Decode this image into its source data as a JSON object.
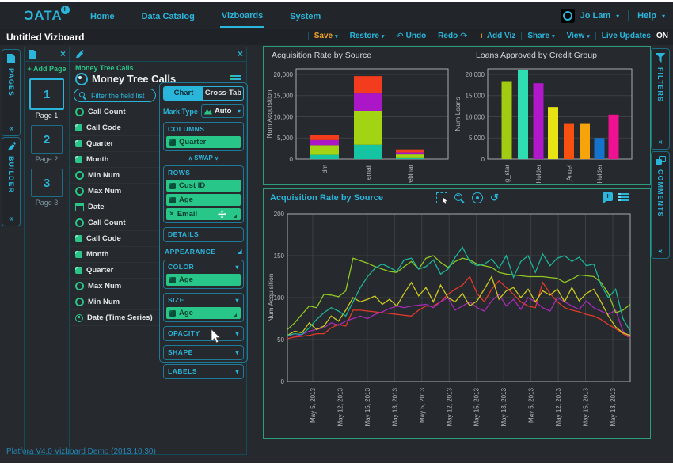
{
  "nav": {
    "logo": "ƆATA",
    "logo_plus": "+",
    "items": [
      {
        "label": "Home",
        "active": false
      },
      {
        "label": "Data Catalog",
        "active": false
      },
      {
        "label": "Vizboards",
        "active": true
      },
      {
        "label": "System",
        "active": false
      }
    ],
    "user": "Jo Lam",
    "help": "Help"
  },
  "titlebar": {
    "title": "Untitled Vizboard",
    "save": "Save",
    "restore": "Restore",
    "undo": "Undo",
    "redo": "Redo",
    "add_viz": "Add Viz",
    "share": "Share",
    "view": "View",
    "live_updates": "Live Updates",
    "live_updates_state": "ON"
  },
  "left_rail": {
    "pages": "PAGES",
    "builder": "BUILDER"
  },
  "right_rail": {
    "filters": "FILTERS",
    "comments": "COMMENTS"
  },
  "pages_panel": {
    "add_page": "+ Add Page",
    "pages": [
      {
        "num": "1",
        "label": "Page 1",
        "selected": true
      },
      {
        "num": "2",
        "label": "Page 2",
        "selected": false
      },
      {
        "num": "3",
        "label": "Page 3",
        "selected": false
      }
    ]
  },
  "builder_panel": {
    "dataset_small": "Money Tree Calls",
    "dataset_title": "Money Tree Calls",
    "filter_placeholder": "Filter the field list",
    "fields": [
      {
        "label": "Call Count",
        "icon": "measure-icon"
      },
      {
        "label": "Call Code",
        "icon": "dimension-icon"
      },
      {
        "label": "Quarter",
        "icon": "dimension-icon"
      },
      {
        "label": "Month",
        "icon": "dimension-icon"
      },
      {
        "label": "Min Num",
        "icon": "measure-icon"
      },
      {
        "label": "Max Num",
        "icon": "measure-icon"
      },
      {
        "label": "Date",
        "icon": "date-icon"
      },
      {
        "label": "Call Count",
        "icon": "measure-icon"
      },
      {
        "label": "Call Code",
        "icon": "dimension-icon"
      },
      {
        "label": "Month",
        "icon": "dimension-icon"
      },
      {
        "label": "Quarter",
        "icon": "dimension-icon"
      },
      {
        "label": "Max Num",
        "icon": "measure-icon"
      },
      {
        "label": "Min Num",
        "icon": "measure-icon"
      },
      {
        "label": "Date (Time Series)",
        "icon": "timeseries-icon"
      }
    ],
    "tabs": {
      "chart": "Chart",
      "crosstab": "Cross-Tab"
    },
    "mark_type_label": "Mark Type",
    "mark_type_value": "Auto",
    "columns_label": "COLUMNS",
    "columns_pills": [
      "Quarter"
    ],
    "swap_label": "SWAP",
    "rows_label": "ROWS",
    "rows_pills": [
      "Cust ID",
      "Age",
      "Email"
    ],
    "details_label": "DETAILS",
    "appearance_label": "APPEARANCE",
    "color_label": "COLOR",
    "color_pill": "Age",
    "size_label": "SIZE",
    "size_pill": "Age",
    "opacity_label": "OPACITY",
    "shape_label": "SHAPE",
    "labels_label": "LABELS"
  },
  "icons": {
    "close": "×",
    "collapse": "«",
    "caret_down": "▾",
    "swap_up": "∧",
    "swap_down": "∨",
    "undo": "↶",
    "redo": "↷",
    "plus": "+",
    "rotate_ccw": "↺",
    "corner_resize": "◢"
  },
  "footer": "Platfora V4.0 Vizboard Demo (2013.10.30)",
  "chart_data": [
    {
      "id": "acquisition-rate-stacked-bar",
      "type": "bar",
      "stacked": true,
      "title": "Acquisition Rate by Source",
      "ylabel": "Num Acquisition",
      "yticks": [
        0,
        5000,
        10000,
        15000,
        20000
      ],
      "ytick_labels": [
        "0",
        "5,000",
        "10,000",
        "15,000",
        "20,000"
      ],
      "ylim": [
        0,
        21300
      ],
      "grid": true,
      "legend": "none",
      "categories": [
        "dm",
        "email",
        "webinar"
      ],
      "series": [
        {
          "name": "segment-teal",
          "color": "#14c4a2",
          "values": [
            1000,
            3400,
            400
          ]
        },
        {
          "name": "segment-lime",
          "color": "#a2d414",
          "values": [
            2300,
            8000,
            700
          ]
        },
        {
          "name": "segment-purple",
          "color": "#ab16c6",
          "values": [
            1200,
            4100,
            500
          ]
        },
        {
          "name": "segment-red",
          "color": "#f33b1d",
          "values": [
            1200,
            4100,
            700
          ]
        }
      ]
    },
    {
      "id": "loans-approved-bar",
      "type": "bar",
      "stacked": false,
      "title": "Loans Approved by Credit Group",
      "ylabel": "Num Loans",
      "yticks": [
        0,
        5000,
        10000,
        15000,
        20000
      ],
      "ytick_labels": [
        "0",
        "5,000",
        "10,000",
        "15,000",
        "20,000"
      ],
      "ylim": [
        0,
        21300
      ],
      "grid": true,
      "legend": "none",
      "values": [
        18400,
        21000,
        17900,
        12300,
        8300,
        8300,
        5000,
        10500
      ],
      "colors": [
        "#a2cc11",
        "#2eddb2",
        "#b018ca",
        "#e8e414",
        "#f8500e",
        "#f7a40a",
        "#1473cc",
        "#ee1190"
      ],
      "xtick_labels_partial": [
        {
          "index": 0,
          "label": "ising_star"
        },
        {
          "index": 2,
          "label": "ne_Holder"
        },
        {
          "index": 4,
          "label": "llen_Angel"
        },
        {
          "index": 6,
          "label": "ne_Holder"
        }
      ]
    },
    {
      "id": "acquisition-rate-line",
      "type": "line",
      "title": "Acquisition Rate by Source",
      "ylabel": "Num Acquisition",
      "yticks": [
        0,
        50,
        100,
        150,
        200
      ],
      "ylim": [
        0,
        200
      ],
      "grid": true,
      "legend": "none",
      "xtick_labels": [
        "May 5, 2013",
        "May 12, 2013",
        "May 15, 2013",
        "May 13, 2013",
        "May 5, 2013",
        "May 12, 2013",
        "May 15, 2013",
        "May 13, 2013",
        "May 5, 2013",
        "May 12, 2013",
        "May 15, 2013",
        "May 13, 2013"
      ],
      "series": [
        {
          "name": "series-red",
          "color": "#e2392b",
          "values": [
            51,
            53,
            54,
            55,
            57,
            57,
            64,
            68,
            66,
            85,
            85,
            84,
            83,
            82,
            81,
            80,
            79,
            78,
            85,
            90,
            90,
            95,
            104,
            110,
            115,
            125,
            105,
            95,
            110,
            120,
            112,
            104,
            95,
            90,
            88,
            118,
            105,
            95,
            88,
            85,
            83,
            80,
            78,
            74,
            68,
            63,
            57,
            52
          ]
        },
        {
          "name": "series-purple",
          "color": "#a62bb5",
          "values": [
            55,
            54,
            56,
            60,
            62,
            64,
            70,
            67,
            72,
            75,
            78,
            75,
            80,
            83,
            87,
            90,
            88,
            90,
            91,
            92,
            88,
            95,
            100,
            85,
            90,
            95,
            88,
            84,
            96,
            104,
            90,
            98,
            86,
            100,
            95,
            88,
            84,
            100,
            95,
            90,
            86,
            96,
            88,
            84,
            80,
            85,
            60,
            52
          ]
        },
        {
          "name": "series-yellow",
          "color": "#cdc81f",
          "values": [
            55,
            60,
            58,
            70,
            62,
            66,
            78,
            72,
            85,
            100,
            95,
            98,
            102,
            92,
            98,
            90,
            105,
            118,
            102,
            112,
            95,
            115,
            100,
            95,
            105,
            90,
            96,
            110,
            125,
            98,
            108,
            112,
            100,
            110,
            95,
            108,
            103,
            110,
            95,
            112,
            96,
            105,
            110,
            95,
            78,
            65,
            58,
            55
          ]
        },
        {
          "name": "series-lime",
          "color": "#8fc822",
          "values": [
            62,
            70,
            80,
            90,
            88,
            104,
            103,
            101,
            108,
            147,
            144,
            141,
            137,
            134,
            131,
            130,
            137,
            143,
            134,
            147,
            150,
            142,
            136,
            143,
            147,
            145,
            140,
            138,
            136,
            130,
            128,
            127,
            126,
            125,
            125,
            125,
            124,
            123,
            118,
            122,
            127,
            126,
            125,
            118,
            105,
            82,
            85,
            92
          ]
        },
        {
          "name": "series-teal",
          "color": "#1cb598",
          "values": [
            55,
            57,
            56,
            64,
            74,
            82,
            88,
            84,
            78,
            95,
            112,
            125,
            135,
            140,
            136,
            131,
            145,
            147,
            134,
            137,
            145,
            128,
            134,
            148,
            160,
            143,
            138,
            140,
            146,
            135,
            150,
            124,
            143,
            150,
            130,
            152,
            138,
            147,
            150,
            143,
            148,
            138,
            140,
            115,
            100,
            110,
            75,
            60
          ]
        }
      ]
    }
  ]
}
